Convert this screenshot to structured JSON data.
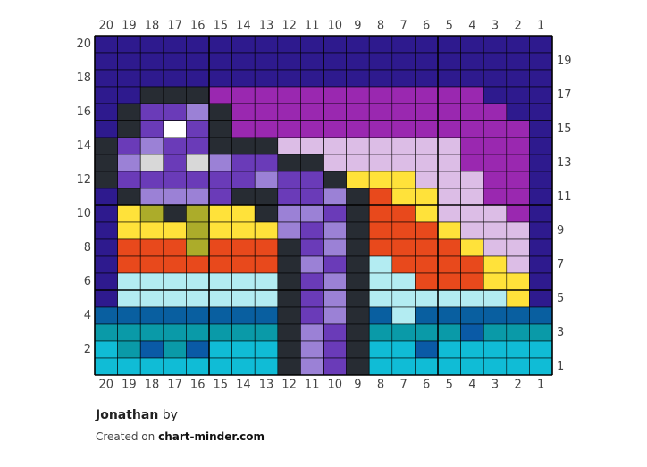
{
  "palette": {
    "N": "#2e1a8e",
    "D": "#272c33",
    "M": "#6a3bb8",
    "L": "#9b81d6",
    "W": "#ffffff",
    "G": "#d8d8d8",
    "P": "#9a28b0",
    "K": "#dcbde6",
    "Y": "#ffe23a",
    "O": "#e8491c",
    "V": "#acac2a",
    "C": "#b3ecf2",
    "B": "#095fa0",
    "T": "#0a9aa8",
    "Q": "#10bcd6",
    "R": "#0a5aa6"
  },
  "grid_rows": [
    "NNNNNNNNNNNNNNNNNNNN",
    "NNNNNNNNNNNNNNNNNNNN",
    "NNNNNNNNNNNNNNNNNNNN",
    "NNDDDPPPPPPPPPPPPNNN",
    "NDMMLDPPPPPPPPPPPPNN",
    "NDMWMDPPPPPPPPPPPPPN",
    "DMLMMDDDKKKKKKKKPPPN",
    "DLGMGLMMDDKKKKKKPPPN",
    "DMMMMMMLMMDYYYKKKPPN",
    "NDLLLMDDMMLDOYYKKPPN",
    "NYVDVYYDLLMDOOYKKKPN",
    "NYYYVYYYLMLDOOOYKKKN",
    "NOOOVOOODMLDOOOOYKKN",
    "NOOOOOOODLMDCOOOOYKN",
    "NCCCCCCCDMLDCCOOOYYN",
    "NCCCCCCCDMLDCCCCCCYN",
    "BBBBBBBBDMLDBCBBBBBB",
    "TTTTTTTTDLMDTTTTRTTT",
    "QTRTRQQQDLMDQQRQQQQQ",
    "QQQQQQQQDLMDQQQQQQQQ"
  ],
  "top_labels": [
    "20",
    "19",
    "18",
    "17",
    "16",
    "15",
    "14",
    "13",
    "12",
    "11",
    "10",
    "9",
    "8",
    "7",
    "6",
    "5",
    "4",
    "3",
    "2",
    "1"
  ],
  "bottom_labels": [
    "20",
    "19",
    "18",
    "17",
    "16",
    "15",
    "14",
    "13",
    "12",
    "11",
    "10",
    "9",
    "8",
    "7",
    "6",
    "5",
    "4",
    "3",
    "2",
    "1"
  ],
  "left_labels": [
    "20",
    "18",
    "16",
    "14",
    "12",
    "10",
    "8",
    "6",
    "4",
    "2"
  ],
  "right_labels": [
    "19",
    "17",
    "15",
    "13",
    "11",
    "9",
    "7",
    "5",
    "3",
    "1"
  ],
  "credit": {
    "name": "Jonathan",
    "by": "by",
    "created_on": "Created on",
    "site": "chart-minder.com"
  }
}
